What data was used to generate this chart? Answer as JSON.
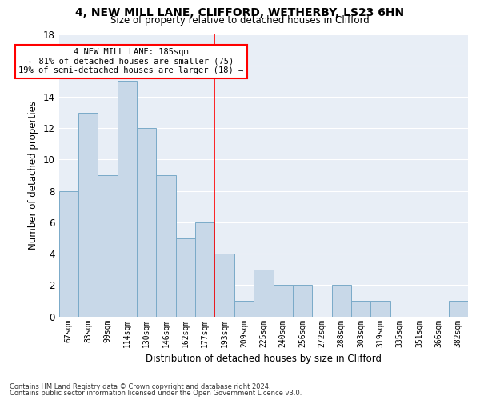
{
  "title1": "4, NEW MILL LANE, CLIFFORD, WETHERBY, LS23 6HN",
  "title2": "Size of property relative to detached houses in Clifford",
  "xlabel": "Distribution of detached houses by size in Clifford",
  "ylabel": "Number of detached properties",
  "categories": [
    "67sqm",
    "83sqm",
    "99sqm",
    "114sqm",
    "130sqm",
    "146sqm",
    "162sqm",
    "177sqm",
    "193sqm",
    "209sqm",
    "225sqm",
    "240sqm",
    "256sqm",
    "272sqm",
    "288sqm",
    "303sqm",
    "319sqm",
    "335sqm",
    "351sqm",
    "366sqm",
    "382sqm"
  ],
  "values": [
    8,
    13,
    9,
    15,
    12,
    9,
    5,
    6,
    4,
    1,
    3,
    2,
    2,
    0,
    2,
    1,
    1,
    0,
    0,
    0,
    1
  ],
  "bar_color": "#c8d8e8",
  "bar_edge_color": "#7aaac8",
  "vline_x": 7.5,
  "vline_color": "red",
  "annotation_text": "4 NEW MILL LANE: 185sqm\n← 81% of detached houses are smaller (75)\n19% of semi-detached houses are larger (18) →",
  "annotation_box_color": "white",
  "annotation_box_edge": "red",
  "ylim": [
    0,
    18
  ],
  "yticks": [
    0,
    2,
    4,
    6,
    8,
    10,
    12,
    14,
    16,
    18
  ],
  "bg_color": "#e8eef6",
  "grid_color": "#ffffff",
  "footnote1": "Contains HM Land Registry data © Crown copyright and database right 2024.",
  "footnote2": "Contains public sector information licensed under the Open Government Licence v3.0."
}
